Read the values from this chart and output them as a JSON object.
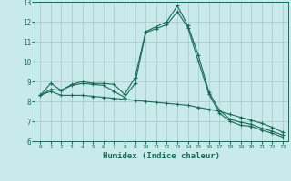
{
  "xlabel": "Humidex (Indice chaleur)",
  "bg_color": "#c8eaea",
  "grid_color": "#b0cccc",
  "line_color": "#1a6b5a",
  "xlim": [
    -0.5,
    23.5
  ],
  "ylim": [
    6,
    13
  ],
  "yticks": [
    6,
    7,
    8,
    9,
    10,
    11,
    12,
    13
  ],
  "xticks": [
    0,
    1,
    2,
    3,
    4,
    5,
    6,
    7,
    8,
    9,
    10,
    11,
    12,
    13,
    14,
    15,
    16,
    17,
    18,
    19,
    20,
    21,
    22,
    23
  ],
  "line1": [
    8.3,
    8.9,
    8.55,
    8.85,
    9.0,
    8.9,
    8.9,
    8.85,
    8.35,
    9.2,
    11.5,
    11.75,
    12.0,
    12.8,
    11.8,
    10.3,
    8.45,
    7.55,
    7.1,
    6.95,
    6.85,
    6.65,
    6.5,
    6.3
  ],
  "line2": [
    8.3,
    8.6,
    8.55,
    8.8,
    8.9,
    8.85,
    8.8,
    8.5,
    8.2,
    8.9,
    11.45,
    11.65,
    11.85,
    12.5,
    11.7,
    10.0,
    8.35,
    7.4,
    7.0,
    6.8,
    6.75,
    6.55,
    6.4,
    6.2
  ],
  "line3": [
    8.3,
    8.5,
    8.3,
    8.3,
    8.3,
    8.25,
    8.2,
    8.15,
    8.1,
    8.05,
    8.0,
    7.95,
    7.9,
    7.85,
    7.8,
    7.7,
    7.6,
    7.5,
    7.35,
    7.2,
    7.05,
    6.9,
    6.7,
    6.45
  ]
}
